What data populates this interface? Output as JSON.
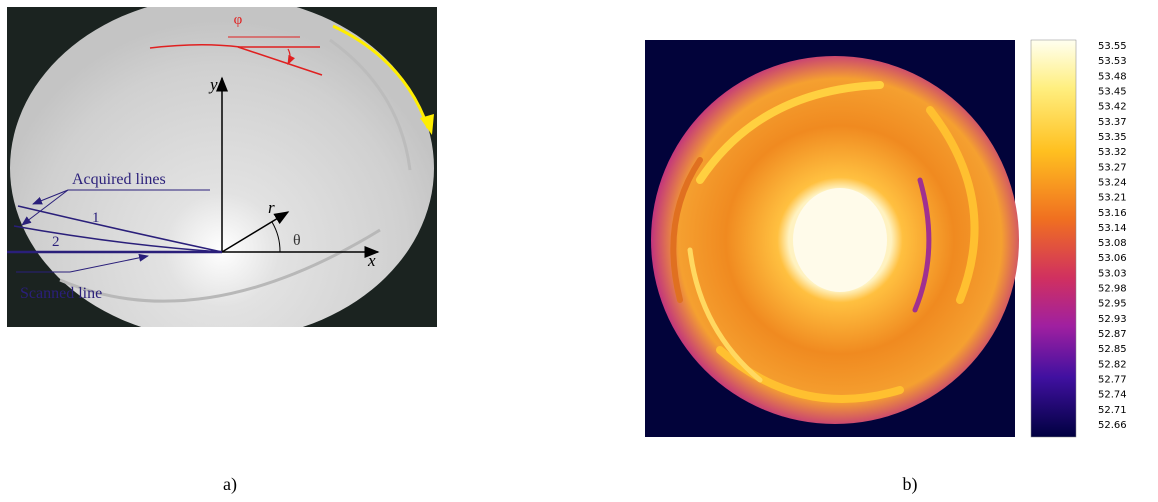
{
  "panel_a": {
    "labels": {
      "phi": "φ",
      "y": "y",
      "x": "x",
      "r": "r",
      "theta": "θ",
      "acquired_lines": "Acquired lines",
      "line_1": "1",
      "line_2": "2",
      "scanned_line": "Scanned line"
    },
    "caption": "a)"
  },
  "panel_b": {
    "colorbar_ticks": [
      53.55,
      53.53,
      53.48,
      53.45,
      53.42,
      53.37,
      53.35,
      53.32,
      53.27,
      53.24,
      53.21,
      53.16,
      53.14,
      53.08,
      53.06,
      53.03,
      52.98,
      52.95,
      52.93,
      52.87,
      52.85,
      52.82,
      52.77,
      52.74,
      52.71,
      52.66
    ],
    "caption": "b)"
  }
}
